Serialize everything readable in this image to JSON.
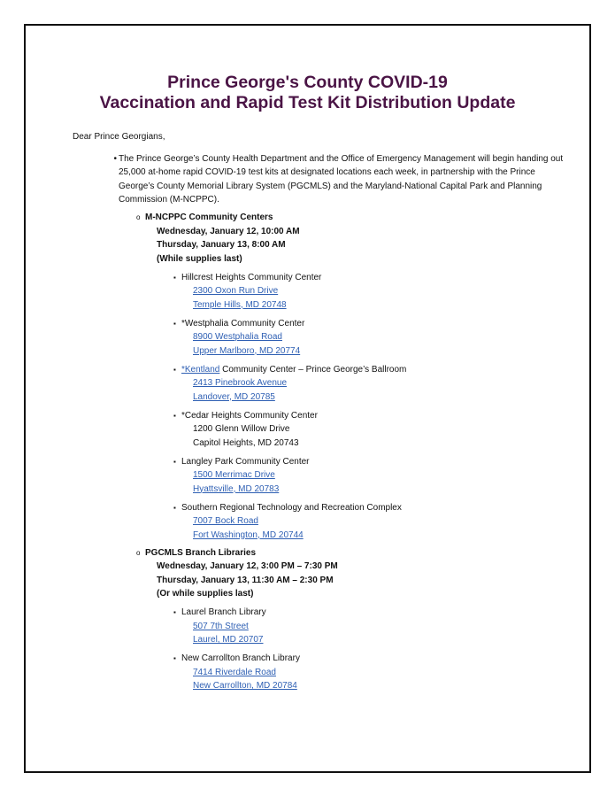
{
  "title": {
    "line1": "Prince George's County COVID-19",
    "line2": "Vaccination and Rapid Test Kit Distribution Update"
  },
  "colors": {
    "title": "#4a1445",
    "link": "#2e5fb3"
  },
  "greeting": "Dear Prince Georgians,",
  "intro": "The Prince George’s County Health Department and the Office of Emergency Management will begin handing out 25,000 at-home rapid COVID-19 test kits at designated locations each week, in partnership with the Prince George’s County Memorial Library System (PGCMLS) and the Maryland-National Capital Park and Planning Commission (M-NCPPC).",
  "sections": [
    {
      "heading": "M-NCPPC Community Centers",
      "dates": [
        "Wednesday, January 12, 10:00 AM",
        "Thursday, January 13, 8:00 AM",
        "(While supplies last)"
      ],
      "locations": [
        {
          "name_link": "",
          "name": "Hillcrest Heights Community Center",
          "address1": "2300 Oxon Run Drive",
          "address2": "Temple Hills, MD 20748",
          "linked": true
        },
        {
          "name_link": "",
          "name": "*Westphalia Community Center",
          "address1": "8900 Westphalia Road",
          "address2": "Upper Marlboro, MD 20774",
          "linked": true
        },
        {
          "name_link": "*Kentland",
          "name": " Community Center – Prince George’s Ballroom",
          "address1": "2413 Pinebrook Avenue ",
          "address2": "Landover, MD 20785",
          "linked": true
        },
        {
          "name_link": "",
          "name": "*Cedar Heights Community Center",
          "address1": "1200 Glenn Willow Drive",
          "address2": "Capitol Heights, MD 20743",
          "linked": false
        },
        {
          "name_link": "",
          "name": "Langley Park Community Center",
          "address1": "1500 Merrimac Drive",
          "address2": "Hyattsville, MD 20783",
          "linked": true
        },
        {
          "name_link": "",
          "name": "Southern Regional Technology and Recreation Complex",
          "address1": "7007 Bock Road",
          "address2": "Fort Washington, MD 20744",
          "linked": true
        }
      ]
    },
    {
      "heading": "PGCMLS Branch Libraries",
      "dates": [
        "Wednesday, January 12, 3:00 PM – 7:30 PM",
        "Thursday, January 13, 11:30 AM – 2:30 PM",
        "(Or while supplies last)"
      ],
      "locations": [
        {
          "name_link": "",
          "name": "Laurel Branch Library",
          "address1": "507 7th Street ",
          "address2": "Laurel, MD 20707",
          "linked": true
        },
        {
          "name_link": "",
          "name": "New Carrollton Branch Library",
          "address1": "7414 Riverdale Road",
          "address2": "New Carrollton, MD 20784",
          "linked": true
        }
      ]
    }
  ]
}
